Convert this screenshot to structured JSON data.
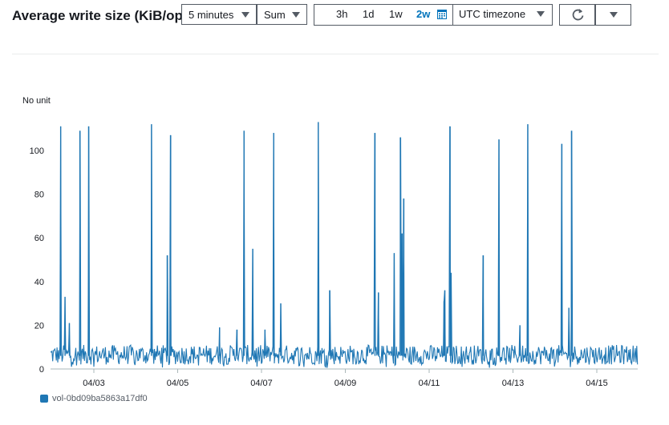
{
  "widget": {
    "title": "Average write size (KiB/op)",
    "period": "5 minutes",
    "statistic": "Sum",
    "ranges": [
      "3h",
      "1d",
      "1w",
      "2w"
    ],
    "active_range": "2w",
    "timezone": "UTC timezone",
    "refresh_icon": "refresh-icon",
    "more_icon": "chevron-down-icon",
    "calendar_icon": "calendar-icon"
  },
  "chart_data": {
    "type": "line",
    "ylabel": "No unit",
    "ylim": [
      0,
      115
    ],
    "yticks": [
      "0",
      "20",
      "40",
      "60",
      "80",
      "100"
    ],
    "yticks_values": [
      0,
      20,
      40,
      60,
      80,
      100
    ],
    "xticks": [
      "04/03",
      "04/05",
      "04/07",
      "04/09",
      "04/11",
      "04/13",
      "04/15"
    ],
    "x_range": [
      "04/02 00:00",
      "04/16 00:00"
    ],
    "series": [
      {
        "name": "vol-0bd09ba5863a17df0",
        "color": "#1f77b4",
        "baseline_min": 2,
        "baseline_max": 11,
        "spikes": [
          {
            "x": "04/02 05:00",
            "y": 111
          },
          {
            "x": "04/02 07:30",
            "y": 33
          },
          {
            "x": "04/02 10:00",
            "y": 21
          },
          {
            "x": "04/02 16:00",
            "y": 109
          },
          {
            "x": "04/02 21:00",
            "y": 111
          },
          {
            "x": "04/04 09:00",
            "y": 112
          },
          {
            "x": "04/04 18:00",
            "y": 52
          },
          {
            "x": "04/04 20:00",
            "y": 107
          },
          {
            "x": "04/06 00:00",
            "y": 19
          },
          {
            "x": "04/06 10:00",
            "y": 18
          },
          {
            "x": "04/06 14:00",
            "y": 109
          },
          {
            "x": "04/06 19:00",
            "y": 55
          },
          {
            "x": "04/07 02:00",
            "y": 18
          },
          {
            "x": "04/07 07:00",
            "y": 108
          },
          {
            "x": "04/07 11:00",
            "y": 30
          },
          {
            "x": "04/08 08:30",
            "y": 113
          },
          {
            "x": "04/08 15:00",
            "y": 36
          },
          {
            "x": "04/09 17:00",
            "y": 108
          },
          {
            "x": "04/09 19:00",
            "y": 35
          },
          {
            "x": "04/10 04:00",
            "y": 53
          },
          {
            "x": "04/10 07:30",
            "y": 106
          },
          {
            "x": "04/10 08:30",
            "y": 62
          },
          {
            "x": "04/10 09:30",
            "y": 78
          },
          {
            "x": "04/11 08:30",
            "y": 31
          },
          {
            "x": "04/11 09:00",
            "y": 36
          },
          {
            "x": "04/11 12:00",
            "y": 111
          },
          {
            "x": "04/11 12:30",
            "y": 44
          },
          {
            "x": "04/12 07:00",
            "y": 52
          },
          {
            "x": "04/12 16:00",
            "y": 105
          },
          {
            "x": "04/13 04:00",
            "y": 20
          },
          {
            "x": "04/13 08:30",
            "y": 112
          },
          {
            "x": "04/14 04:00",
            "y": 103
          },
          {
            "x": "04/14 08:00",
            "y": 28
          },
          {
            "x": "04/14 09:30",
            "y": 109
          }
        ]
      }
    ],
    "grid": false,
    "legend_position": "bottom-left"
  }
}
